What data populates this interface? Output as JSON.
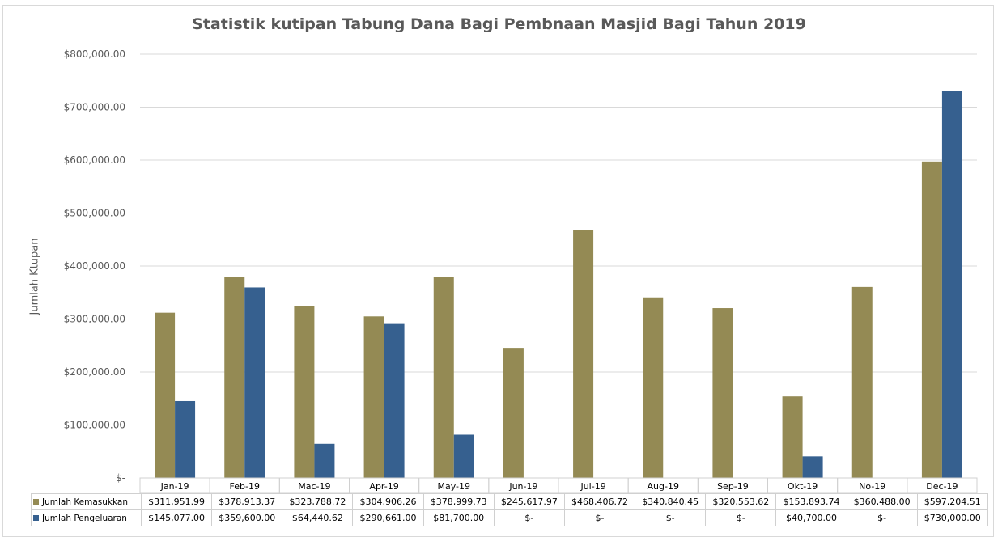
{
  "chart_data": {
    "type": "bar",
    "title": "Statistik kutipan Tabung Dana Bagi Pembnaan Masjid Bagi Tahun 2019",
    "ylabel": "Jumlah Ktupan",
    "xlabel": "",
    "ylim": [
      0,
      800000
    ],
    "yticks": [
      0,
      100000,
      200000,
      300000,
      400000,
      500000,
      600000,
      700000,
      800000
    ],
    "ytick_labels": [
      "$-",
      "$100,000.00",
      "$200,000.00",
      "$300,000.00",
      "$400,000.00",
      "$500,000.00",
      "$600,000.00",
      "$700,000.00",
      "$800,000.00"
    ],
    "grid": true,
    "legend": "data-table",
    "categories": [
      "Jan-19",
      "Feb-19",
      "Mac-19",
      "Apr-19",
      "May-19",
      "Jun-19",
      "Jul-19",
      "Aug-19",
      "Sep-19",
      "Okt-19",
      "No-19",
      "Dec-19"
    ],
    "series": [
      {
        "name": "Jumlah Kemasukkan",
        "color": "#948a54",
        "values": [
          311951.99,
          378913.37,
          323788.72,
          304906.26,
          378999.73,
          245617.97,
          468406.72,
          340840.45,
          320553.62,
          153893.74,
          360488.0,
          597204.51
        ],
        "labels": [
          "$311,951.99",
          "$378,913.37",
          "$323,788.72",
          "$304,906.26",
          "$378,999.73",
          "$245,617.97",
          "$468,406.72",
          "$340,840.45",
          "$320,553.62",
          "$153,893.74",
          "$360,488.00",
          "$597,204.51"
        ]
      },
      {
        "name": "Jumlah Pengeluaran",
        "color": "#36608f",
        "values": [
          145077.0,
          359600.0,
          64440.62,
          290661.0,
          81700.0,
          0,
          0,
          0,
          0,
          40700.0,
          0,
          730000.0
        ],
        "labels": [
          "$145,077.00",
          "$359,600.00",
          "$64,440.62",
          "$290,661.00",
          "$81,700.00",
          "$-",
          "$-",
          "$-",
          "$-",
          "$40,700.00",
          "$-",
          "$730,000.00"
        ]
      }
    ]
  }
}
